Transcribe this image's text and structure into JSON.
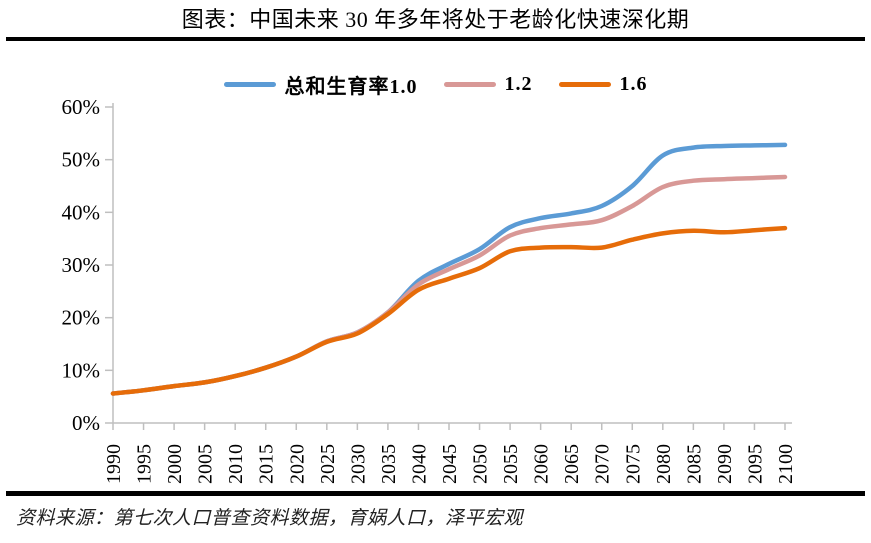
{
  "page": {
    "title": "图表：中国未来 30 年多年将处于老龄化快速深化期",
    "source_note": "资料来源：第七次人口普查资料数据，育娲人口，泽平宏观"
  },
  "chart_data": {
    "type": "line",
    "title": "中国未来 30 年多年将处于老龄化快速深化期",
    "x": [
      1990,
      1995,
      2000,
      2005,
      2010,
      2015,
      2020,
      2025,
      2030,
      2035,
      2040,
      2045,
      2050,
      2055,
      2060,
      2065,
      2070,
      2075,
      2080,
      2085,
      2090,
      2095,
      2100
    ],
    "x_tick_labels": [
      "1990",
      "1995",
      "2000",
      "2005",
      "2010",
      "2015",
      "2020",
      "2025",
      "2030",
      "2035",
      "2040",
      "2045",
      "2050",
      "2055",
      "2060",
      "2065",
      "2070",
      "2075",
      "2080",
      "2085",
      "2090",
      "2095",
      "2100"
    ],
    "y_axis": {
      "min": 0,
      "max": 60,
      "step": 10,
      "unit": "%",
      "tick_labels": [
        "0%",
        "10%",
        "20%",
        "30%",
        "40%",
        "50%",
        "60%"
      ]
    },
    "grid": false,
    "legend_position": "top",
    "axis_color": "#BFBFBF",
    "tick_label_color": "#000000",
    "series": [
      {
        "name": "总和生育率1.0",
        "color": "#5B9BD5",
        "values": [
          5.6,
          6.2,
          7.0,
          7.7,
          8.9,
          10.5,
          12.6,
          15.5,
          17.2,
          21.0,
          27.0,
          30.2,
          33.0,
          37.2,
          38.9,
          39.8,
          41.2,
          45.0,
          50.8,
          52.3,
          52.6,
          52.7,
          52.8
        ]
      },
      {
        "name": "1.2",
        "color": "#D89896",
        "values": [
          5.6,
          6.2,
          7.0,
          7.7,
          8.9,
          10.5,
          12.6,
          15.5,
          17.2,
          21.0,
          26.3,
          29.2,
          31.8,
          35.6,
          37.0,
          37.7,
          38.5,
          41.2,
          44.8,
          46.0,
          46.3,
          46.5,
          46.7
        ]
      },
      {
        "name": "1.6",
        "color": "#E66C09",
        "values": [
          5.6,
          6.2,
          7.0,
          7.7,
          8.9,
          10.5,
          12.6,
          15.4,
          17.0,
          20.7,
          25.3,
          27.4,
          29.4,
          32.6,
          33.3,
          33.4,
          33.3,
          34.8,
          36.0,
          36.5,
          36.2,
          36.6,
          37.0
        ]
      }
    ]
  }
}
